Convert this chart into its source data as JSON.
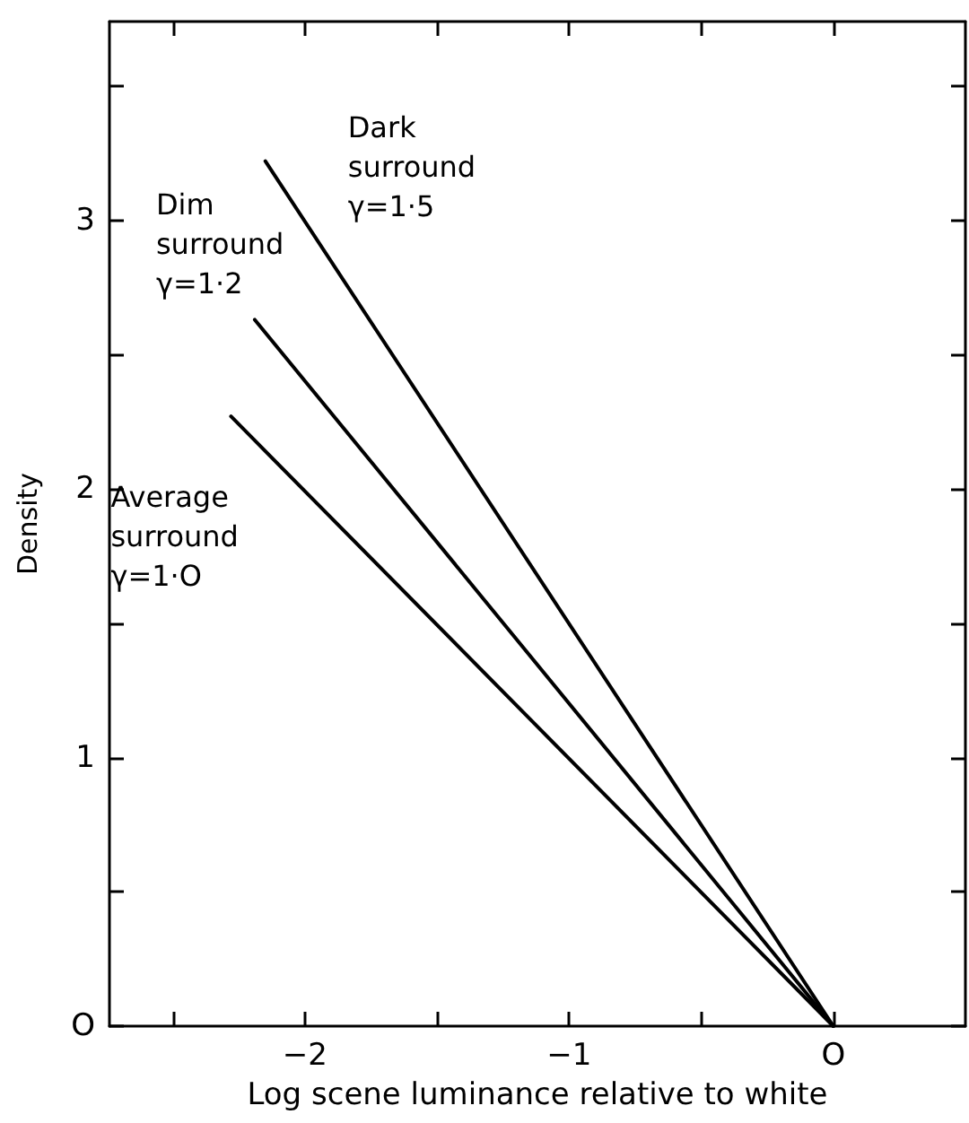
{
  "chart_data": {
    "type": "line",
    "xlabel": "Log scene luminance relative to white",
    "ylabel": "Density",
    "xlim": [
      -2.74,
      0.5
    ],
    "ylim": [
      0,
      3.74
    ],
    "xticks": [
      {
        "value": -2.5,
        "label": null
      },
      {
        "value": -2,
        "label": "−2"
      },
      {
        "value": -1.5,
        "label": null
      },
      {
        "value": -1,
        "label": "−1"
      },
      {
        "value": -0.5,
        "label": null
      },
      {
        "value": 0,
        "label": "O"
      }
    ],
    "yticks": [
      {
        "value": 0,
        "label": "O"
      },
      {
        "value": 0.5,
        "label": null
      },
      1,
      {
        "value": 1.5,
        "label": null
      },
      2,
      {
        "value": 2.5,
        "label": null
      },
      3,
      {
        "value": 3.5,
        "label": null
      }
    ],
    "series": [
      {
        "name": "Dark\nsurround\nγ=1·5",
        "color": "#000000",
        "x": [
          -2.15,
          0
        ],
        "values": [
          3.22,
          0
        ]
      },
      {
        "name": "Dim\nsurround\nγ=1·2",
        "color": "#000000",
        "x": [
          -2.19,
          0
        ],
        "values": [
          2.63,
          0
        ]
      },
      {
        "name": "Average\nsurround\nγ=1·O",
        "color": "#000000",
        "x": [
          -2.28,
          0
        ],
        "values": [
          2.27,
          0
        ]
      }
    ],
    "grid": false,
    "marker": "none",
    "line_style": "solid"
  }
}
